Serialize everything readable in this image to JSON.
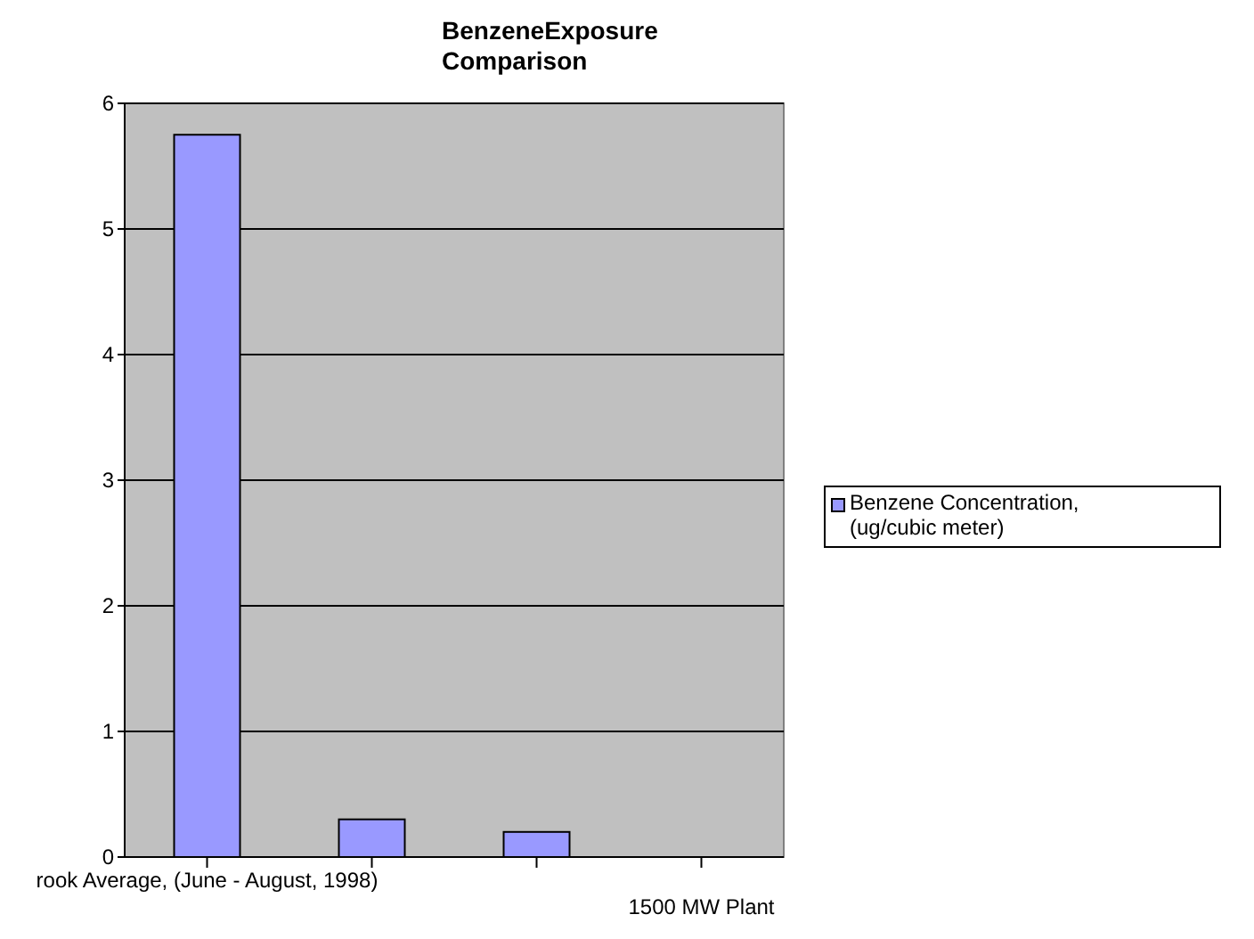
{
  "chart_data": {
    "type": "bar",
    "title": "BenzeneExposure Comparison",
    "categories": [
      "rook Average, (June - August, 1998)",
      null,
      null,
      "1500 MW Plant"
    ],
    "series": [
      {
        "name": "Benzene Concentration, (ug/cubic meter)",
        "color": "#9999ff",
        "values": [
          5.75,
          0.3,
          0.2,
          0
        ]
      }
    ],
    "ylim": [
      0,
      6
    ],
    "yticks": [
      0,
      1,
      2,
      3,
      4,
      5,
      6
    ],
    "grid": "y",
    "legend": "right"
  }
}
